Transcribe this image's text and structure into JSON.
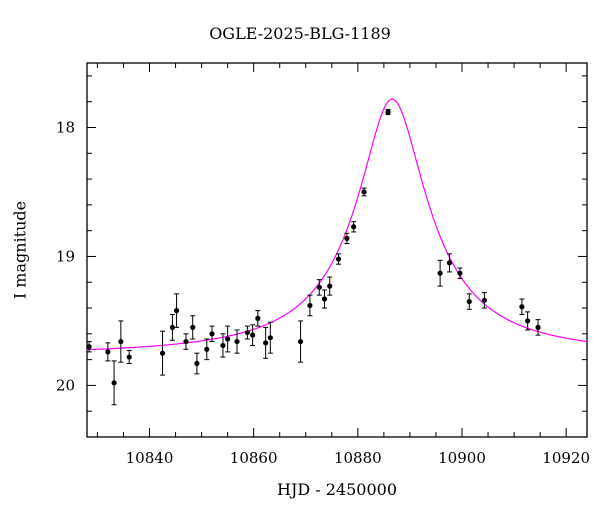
{
  "chart_data": {
    "type": "scatter",
    "title": "OGLE-2025-BLG-1189",
    "xlabel": "HJD - 2450000",
    "ylabel": "I magnitude",
    "xlim": [
      10828,
      10924
    ],
    "ylim": [
      20.4,
      17.5
    ],
    "y_inverted": true,
    "x_ticks": [
      10840,
      10860,
      10880,
      10900,
      10920
    ],
    "y_ticks": [
      18,
      19,
      20
    ],
    "grid": false,
    "colors": {
      "model": "#ff00ff",
      "points": "#000000"
    },
    "series": [
      {
        "kind": "points_with_errorbars",
        "points": [
          {
            "x": 10828.4,
            "y": 19.7,
            "err": 0.04
          },
          {
            "x": 10832.0,
            "y": 19.74,
            "err": 0.07
          },
          {
            "x": 10833.2,
            "y": 19.98,
            "err": 0.17
          },
          {
            "x": 10834.5,
            "y": 19.66,
            "err": 0.16
          },
          {
            "x": 10836.1,
            "y": 19.78,
            "err": 0.05
          },
          {
            "x": 10842.5,
            "y": 19.75,
            "err": 0.17
          },
          {
            "x": 10844.4,
            "y": 19.55,
            "err": 0.1
          },
          {
            "x": 10845.2,
            "y": 19.42,
            "err": 0.13
          },
          {
            "x": 10847.0,
            "y": 19.66,
            "err": 0.06
          },
          {
            "x": 10848.3,
            "y": 19.55,
            "err": 0.09
          },
          {
            "x": 10849.1,
            "y": 19.83,
            "err": 0.08
          },
          {
            "x": 10851.0,
            "y": 19.72,
            "err": 0.08
          },
          {
            "x": 10852.0,
            "y": 19.6,
            "err": 0.06
          },
          {
            "x": 10854.1,
            "y": 19.69,
            "err": 0.09
          },
          {
            "x": 10855.0,
            "y": 19.64,
            "err": 0.1
          },
          {
            "x": 10856.8,
            "y": 19.66,
            "err": 0.09
          },
          {
            "x": 10858.8,
            "y": 19.59,
            "err": 0.05
          },
          {
            "x": 10859.8,
            "y": 19.61,
            "err": 0.08
          },
          {
            "x": 10860.8,
            "y": 19.48,
            "err": 0.06
          },
          {
            "x": 10862.3,
            "y": 19.67,
            "err": 0.12
          },
          {
            "x": 10863.2,
            "y": 19.63,
            "err": 0.12
          },
          {
            "x": 10869.0,
            "y": 19.66,
            "err": 0.16
          },
          {
            "x": 10870.8,
            "y": 19.38,
            "err": 0.08
          },
          {
            "x": 10872.6,
            "y": 19.24,
            "err": 0.06
          },
          {
            "x": 10873.6,
            "y": 19.33,
            "err": 0.07
          },
          {
            "x": 10874.6,
            "y": 19.23,
            "err": 0.07
          },
          {
            "x": 10876.3,
            "y": 19.02,
            "err": 0.04
          },
          {
            "x": 10877.9,
            "y": 18.86,
            "err": 0.04
          },
          {
            "x": 10879.2,
            "y": 18.77,
            "err": 0.04
          },
          {
            "x": 10881.2,
            "y": 18.5,
            "err": 0.03
          },
          {
            "x": 10885.8,
            "y": 17.88,
            "err": 0.02
          },
          {
            "x": 10895.8,
            "y": 19.13,
            "err": 0.1
          },
          {
            "x": 10897.6,
            "y": 19.05,
            "err": 0.07
          },
          {
            "x": 10899.6,
            "y": 19.13,
            "err": 0.04
          },
          {
            "x": 10901.4,
            "y": 19.35,
            "err": 0.06
          },
          {
            "x": 10904.3,
            "y": 19.34,
            "err": 0.06
          },
          {
            "x": 10911.5,
            "y": 19.39,
            "err": 0.06
          },
          {
            "x": 10912.6,
            "y": 19.5,
            "err": 0.07
          },
          {
            "x": 10914.6,
            "y": 19.55,
            "err": 0.06
          }
        ]
      },
      {
        "kind": "model_curve",
        "model": {
          "t0": 10886.6,
          "peak_mag": 17.78,
          "base_mag": 19.77,
          "width": 5.4
        }
      }
    ]
  }
}
